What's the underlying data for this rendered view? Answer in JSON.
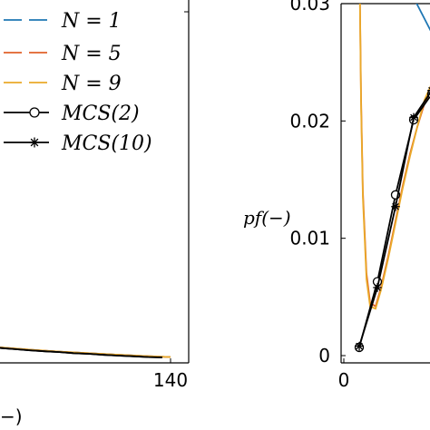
{
  "chart_data": [
    {
      "type": "line",
      "xlabel": "−)",
      "ylabel": "",
      "xlim": [
        58,
        140
      ],
      "ylim": [
        0,
        1
      ],
      "x_ticks": [
        "140"
      ],
      "grid": false,
      "legend": {
        "placement": "top-left",
        "entries": [
          {
            "name": "N = 1",
            "color": "#1f77b4",
            "style": "dashed"
          },
          {
            "name": "N = 5",
            "color": "#e0622a",
            "style": "dashed"
          },
          {
            "name": "N = 9",
            "color": "#eaaa2a",
            "style": "dashed"
          },
          {
            "name": "MCS(2)",
            "color": "#000000",
            "style": "solid",
            "marker": "circle"
          },
          {
            "name": "MCS(10)",
            "color": "#000000",
            "style": "solid",
            "marker": "star"
          }
        ]
      },
      "series": [
        {
          "name": "N = 1",
          "color": "#1f77b4",
          "x": [
            58,
            70,
            80,
            90,
            100,
            110,
            120,
            130,
            140
          ],
          "y": [
            0.045,
            0.038,
            0.032,
            0.026,
            0.021,
            0.017,
            0.013,
            0.009,
            0.006
          ]
        },
        {
          "name": "N = 5",
          "color": "#e0622a",
          "x": [
            58,
            70,
            80,
            90,
            100,
            110,
            120,
            130,
            140
          ],
          "y": [
            0.045,
            0.038,
            0.032,
            0.026,
            0.021,
            0.017,
            0.013,
            0.009,
            0.006
          ]
        },
        {
          "name": "N = 9",
          "color": "#eaaa2a",
          "x": [
            58,
            70,
            80,
            90,
            100,
            110,
            120,
            130,
            140
          ],
          "y": [
            0.045,
            0.038,
            0.032,
            0.026,
            0.021,
            0.017,
            0.013,
            0.009,
            0.006
          ]
        },
        {
          "name": "MCS(2)",
          "color": "#000000",
          "x": [
            58,
            63,
            68,
            73,
            79,
            84,
            89,
            95,
            100,
            105,
            111,
            116,
            121,
            127,
            132,
            137
          ],
          "y": [
            0.045,
            0.042,
            0.038,
            0.035,
            0.031,
            0.028,
            0.025,
            0.022,
            0.02,
            0.017,
            0.015,
            0.012,
            0.01,
            0.008,
            0.006,
            0.005
          ]
        },
        {
          "name": "MCS(10)",
          "color": "#000000",
          "x": [
            58,
            63,
            68,
            73,
            79,
            84,
            89,
            95,
            100,
            105,
            111,
            116,
            121,
            127,
            132,
            137
          ],
          "y": [
            0.045,
            0.042,
            0.038,
            0.035,
            0.031,
            0.028,
            0.025,
            0.022,
            0.02,
            0.017,
            0.015,
            0.012,
            0.01,
            0.008,
            0.006,
            0.005
          ]
        }
      ]
    },
    {
      "type": "line",
      "xlabel": "",
      "ylabel": "p_f(−)",
      "xlim": [
        -0.5,
        5
      ],
      "ylim": [
        0,
        0.03
      ],
      "x_ticks": [
        "0"
      ],
      "y_ticks": [
        "0",
        "0.01",
        "0.02",
        "0.03"
      ],
      "grid": false,
      "series": [
        {
          "name": "N = 1 (solid)",
          "color": "#1f77b4",
          "style": "solid",
          "x": [
            1,
            1.5,
            2,
            2.5,
            3,
            3.5,
            4,
            4.5,
            5
          ],
          "y": [
            0.035,
            0.0305,
            0.0275,
            0.025,
            0.0232,
            0.0218,
            0.0205,
            0.0192,
            0.0178
          ]
        },
        {
          "name": "N = 1 (dashed)",
          "color": "#1f77b4",
          "style": "dashed",
          "x": [
            2.5,
            2.8,
            3.2,
            3.6,
            4,
            4.5,
            5
          ],
          "y": [
            0.035,
            0.03,
            0.0268,
            0.0245,
            0.0228,
            0.0212,
            0.02
          ]
        },
        {
          "name": "N = 5",
          "color": "#e0622a",
          "style": "solid",
          "x": [
            0.02,
            0.05,
            0.1,
            0.2,
            0.3,
            0.45,
            0.6,
            0.8,
            1.0,
            1.2,
            1.4,
            1.6,
            1.8,
            2.0,
            2.2,
            2.4,
            2.6,
            2.8,
            3.0,
            3.2,
            3.4,
            3.6,
            3.8,
            4.0,
            4.3,
            4.6,
            5.0
          ],
          "y": [
            0.03,
            0.022,
            0.014,
            0.007,
            0.0045,
            0.0042,
            0.0058,
            0.0085,
            0.0115,
            0.0145,
            0.0172,
            0.0195,
            0.0215,
            0.0228,
            0.0233,
            0.0232,
            0.0226,
            0.0218,
            0.021,
            0.0203,
            0.0196,
            0.0188,
            0.0178,
            0.0172,
            0.0168,
            0.016,
            0.0155
          ]
        },
        {
          "name": "N = 9",
          "color": "#eaaa2a",
          "style": "solid",
          "x": [
            0.02,
            0.05,
            0.1,
            0.2,
            0.3,
            0.45,
            0.6,
            0.8,
            1.0,
            1.2,
            1.4,
            1.6,
            1.8,
            2.0,
            2.2,
            2.4,
            2.6,
            2.8,
            3.0,
            3.2,
            3.4,
            3.6,
            3.8,
            4.0,
            4.3,
            4.6,
            5.0
          ],
          "y": [
            0.03,
            0.0215,
            0.0135,
            0.0065,
            0.0042,
            0.004,
            0.0056,
            0.0083,
            0.0113,
            0.0143,
            0.017,
            0.0195,
            0.0218,
            0.0232,
            0.0237,
            0.0234,
            0.0227,
            0.0218,
            0.021,
            0.0203,
            0.0195,
            0.0188,
            0.018,
            0.0172,
            0.0165,
            0.016,
            0.0155
          ]
        },
        {
          "name": "MCS(2)",
          "color": "#000000",
          "marker": "circle",
          "x": [
            0,
            0.5,
            1,
            1.5,
            2,
            2.5,
            3,
            3.5,
            4,
            4.5,
            5
          ],
          "y": [
            0.0007,
            0.0063,
            0.0137,
            0.0201,
            0.0223,
            0.0214,
            0.0202,
            0.0195,
            0.0187,
            0.018,
            0.0172
          ]
        },
        {
          "name": "MCS(10)",
          "color": "#000000",
          "marker": "star",
          "x": [
            0,
            0.5,
            1,
            1.5,
            2,
            2.5,
            3,
            3.5,
            4,
            4.5,
            5
          ],
          "y": [
            0.0008,
            0.0058,
            0.0127,
            0.0203,
            0.0226,
            0.0216,
            0.0204,
            0.0196,
            0.0188,
            0.018,
            0.0172
          ]
        }
      ]
    }
  ]
}
